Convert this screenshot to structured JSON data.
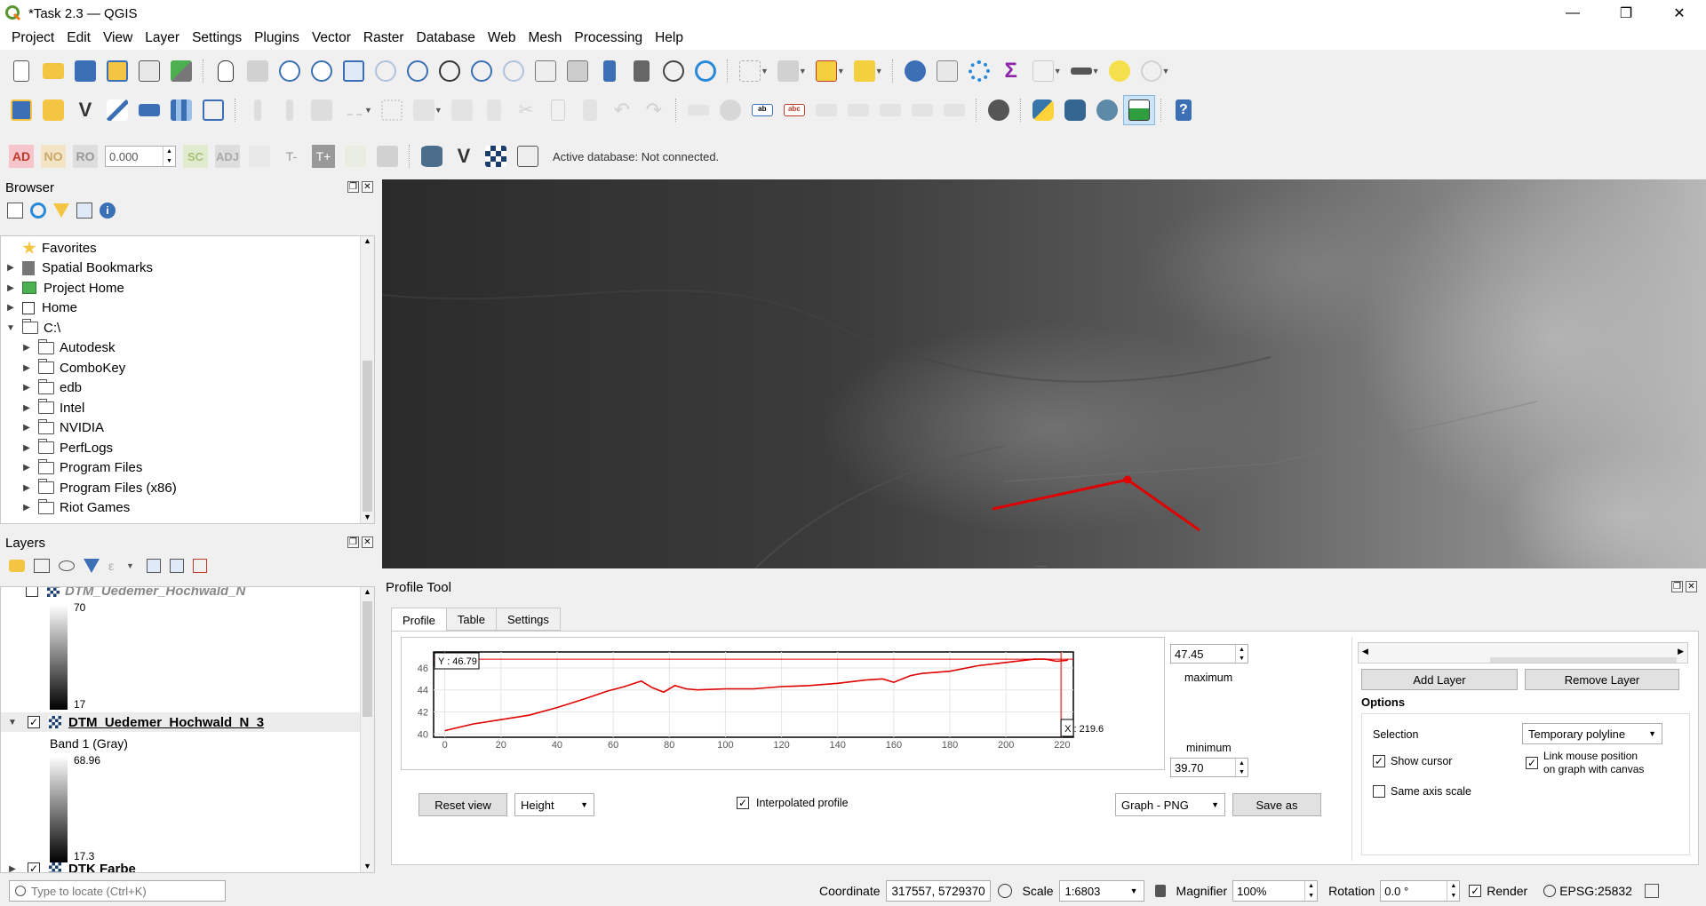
{
  "window": {
    "title": "*Task 2.3 — QGIS",
    "min": "—",
    "max": "❐",
    "close": "✕"
  },
  "menu": [
    "Project",
    "Edit",
    "View",
    "Layer",
    "Settings",
    "Plugins",
    "Vector",
    "Raster",
    "Database",
    "Web",
    "Mesh",
    "Processing",
    "Help"
  ],
  "toolbar3": {
    "ad": "AD",
    "no": "NO",
    "ro": "RO",
    "value": "0.000",
    "sc": "SC",
    "adj": "ADJ",
    "t_minus": "T-",
    "t_plus": "T+",
    "active_db": "Active database: Not connected."
  },
  "browser": {
    "title": "Browser",
    "items": [
      {
        "label": "Favorites",
        "icon": "star-icon",
        "arrow": ""
      },
      {
        "label": "Spatial Bookmarks",
        "icon": "bookmark-icon",
        "arrow": "▶"
      },
      {
        "label": "Project Home",
        "icon": "project-home-icon",
        "arrow": "▶"
      },
      {
        "label": "Home",
        "icon": "home-icon",
        "arrow": "▶"
      },
      {
        "label": "C:\\",
        "icon": "drive-icon",
        "arrow": "▼"
      },
      {
        "label": "Autodesk",
        "icon": "folder-icon",
        "arrow": "▶"
      },
      {
        "label": "ComboKey",
        "icon": "folder-icon",
        "arrow": "▶"
      },
      {
        "label": "edb",
        "icon": "folder-icon",
        "arrow": "▶"
      },
      {
        "label": "Intel",
        "icon": "folder-icon",
        "arrow": "▶"
      },
      {
        "label": "NVIDIA",
        "icon": "folder-icon",
        "arrow": "▶"
      },
      {
        "label": "PerfLogs",
        "icon": "folder-icon",
        "arrow": "▶"
      },
      {
        "label": "Program Files",
        "icon": "folder-icon",
        "arrow": "▶"
      },
      {
        "label": "Program Files (x86)",
        "icon": "folder-icon",
        "arrow": "▶"
      },
      {
        "label": "Riot Games",
        "icon": "folder-icon",
        "arrow": "▶"
      }
    ]
  },
  "layers": {
    "title": "Layers",
    "layer0": {
      "name": "DTM_Uedemer_Hochwald_N",
      "max": "70",
      "min": "17"
    },
    "layer1": {
      "name": "DTM_Uedemer_Hochwald_N_3",
      "band": "Band 1 (Gray)",
      "max": "68.96",
      "min": "17.3"
    },
    "layer2": {
      "name": "DTK Farbe"
    }
  },
  "profile": {
    "title": "Profile Tool",
    "tabs": [
      "Profile",
      "Table",
      "Settings"
    ],
    "y_readout": "Y : 46.79",
    "x_readout": "X : 219.6",
    "maximum_value": "47.45",
    "maximum_label": "maximum",
    "minimum_value": "39.70",
    "minimum_label": "minimum",
    "reset_view": "Reset view",
    "height_combo": "Height",
    "interpolated": "Interpolated profile",
    "graph_combo": "Graph - PNG",
    "save_as": "Save as",
    "add_layer": "Add Layer",
    "remove_layer": "Remove Layer",
    "options": "Options",
    "selection_label": "Selection",
    "selection_value": "Temporary polyline",
    "show_cursor": "Show cursor",
    "link_mouse_1": "Link mouse position",
    "link_mouse_2": "on graph with canvas",
    "same_axis": "Same axis scale"
  },
  "statusbar": {
    "locate_placeholder": "Type to locate (Ctrl+K)",
    "coordinate_label": "Coordinate",
    "coordinate_value": "317557, 5729370",
    "scale_label": "Scale",
    "scale_value": "1:6803",
    "magnifier_label": "Magnifier",
    "magnifier_value": "100%",
    "rotation_label": "Rotation",
    "rotation_value": "0.0 °",
    "render_label": "Render",
    "crs": "EPSG:25832"
  },
  "chart_data": {
    "type": "line",
    "title": "",
    "xlabel": "",
    "ylabel": "",
    "xlim": [
      -4,
      224
    ],
    "ylim": [
      39.7,
      47.45
    ],
    "xticks": [
      "0",
      "20",
      "40",
      "60",
      "80",
      "100",
      "120",
      "140",
      "160",
      "180",
      "200",
      "220"
    ],
    "yticks": [
      "40",
      "42",
      "44",
      "46"
    ],
    "color": "#e00000",
    "x": [
      0,
      10,
      20,
      30,
      40,
      50,
      58,
      64,
      70,
      74,
      78,
      82,
      86,
      90,
      100,
      110,
      120,
      130,
      140,
      150,
      156,
      160,
      166,
      170,
      180,
      190,
      200,
      210,
      214,
      218,
      222
    ],
    "y": [
      40.3,
      40.9,
      41.3,
      41.7,
      42.4,
      43.2,
      43.9,
      44.3,
      44.8,
      44.2,
      43.8,
      44.4,
      44.1,
      44.0,
      44.1,
      44.1,
      44.3,
      44.4,
      44.6,
      44.9,
      45.0,
      44.7,
      45.3,
      45.5,
      45.7,
      46.2,
      46.5,
      46.8,
      46.8,
      46.6,
      46.7
    ],
    "cursor_x": 219.6,
    "cursor_y": 46.79
  }
}
